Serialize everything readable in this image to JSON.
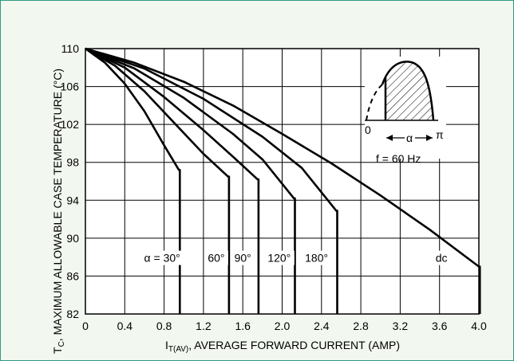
{
  "chart_data": {
    "type": "line",
    "title": "",
    "xlabel": {
      "main": "I",
      "subscript": "T(AV)",
      "rest": ", AVERAGE FORWARD CURRENT (AMP)"
    },
    "ylabel": {
      "main": "T",
      "subscript": "C",
      "rest": ", MAXIMUM ALLOWABLE CASE TEMPERATURE (°C)"
    },
    "xlim": [
      0,
      4.0
    ],
    "ylim": [
      82,
      110
    ],
    "x_ticks": [
      "0",
      "0.4",
      "0.8",
      "1.2",
      "1.6",
      "2.0",
      "2.4",
      "2.8",
      "3.2",
      "3.6",
      "4.0"
    ],
    "y_ticks": [
      "82",
      "86",
      "90",
      "94",
      "98",
      "102",
      "106",
      "110"
    ],
    "grid": true,
    "series": [
      {
        "name": "α = 30°",
        "label_at": [
          0.78,
          87.5
        ],
        "points": [
          [
            0,
            110
          ],
          [
            0.2,
            108.5
          ],
          [
            0.4,
            106.3
          ],
          [
            0.6,
            103.4
          ],
          [
            0.8,
            99.8
          ],
          [
            0.95,
            97.2
          ],
          [
            0.96,
            97.2
          ],
          [
            0.96,
            82
          ]
        ]
      },
      {
        "name": "60°",
        "label_at": [
          1.33,
          87.5
        ],
        "points": [
          [
            0,
            110
          ],
          [
            0.3,
            108.2
          ],
          [
            0.6,
            105.5
          ],
          [
            0.9,
            102.2
          ],
          [
            1.2,
            98.9
          ],
          [
            1.45,
            96.5
          ],
          [
            1.46,
            96.5
          ],
          [
            1.46,
            82
          ]
        ]
      },
      {
        "name": "90°",
        "label_at": [
          1.6,
          87.5
        ],
        "points": [
          [
            0,
            110
          ],
          [
            0.4,
            108.0
          ],
          [
            0.8,
            104.9
          ],
          [
            1.2,
            101.4
          ],
          [
            1.5,
            98.6
          ],
          [
            1.75,
            96.2
          ],
          [
            1.76,
            96.2
          ],
          [
            1.76,
            82
          ]
        ]
      },
      {
        "name": "120°",
        "label_at": [
          1.97,
          87.5
        ],
        "points": [
          [
            0,
            110
          ],
          [
            0.5,
            107.9
          ],
          [
            1.0,
            104.8
          ],
          [
            1.5,
            101.0
          ],
          [
            1.8,
            98.3
          ],
          [
            2.12,
            94.2
          ],
          [
            2.13,
            94.2
          ],
          [
            2.13,
            82
          ]
        ]
      },
      {
        "name": "180°",
        "label_at": [
          2.35,
          87.5
        ],
        "points": [
          [
            0,
            110
          ],
          [
            0.6,
            107.9
          ],
          [
            1.2,
            104.7
          ],
          [
            1.8,
            100.7
          ],
          [
            2.2,
            97.4
          ],
          [
            2.55,
            92.9
          ],
          [
            2.56,
            92.9
          ],
          [
            2.56,
            82
          ]
        ]
      },
      {
        "name": "dc",
        "label_at": [
          3.62,
          87.5
        ],
        "points": [
          [
            0,
            110
          ],
          [
            0.5,
            108.5
          ],
          [
            1.0,
            106.5
          ],
          [
            1.5,
            104.0
          ],
          [
            2.0,
            101.0
          ],
          [
            2.5,
            97.9
          ],
          [
            3.0,
            94.5
          ],
          [
            3.5,
            90.9
          ],
          [
            4.0,
            87.0
          ],
          [
            4.01,
            87.0
          ],
          [
            4.01,
            82
          ]
        ]
      }
    ],
    "inset": {
      "frequency_label": "f = 60 Hz",
      "label_zero": "0",
      "label_pi": "π",
      "label_alpha": "α"
    }
  }
}
